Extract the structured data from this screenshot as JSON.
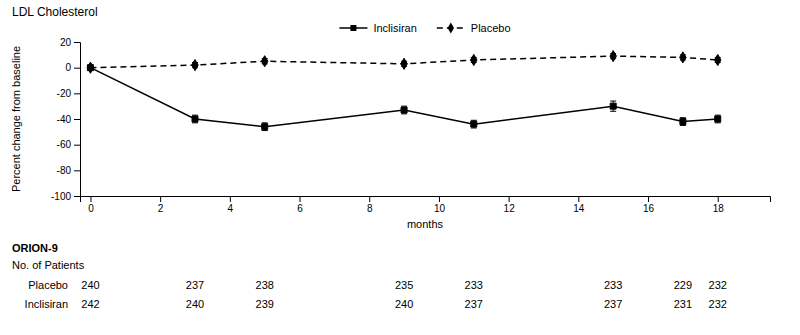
{
  "chart_data": {
    "type": "line",
    "title": "LDL Cholesterol",
    "x_label": "months",
    "y_label": "Percent change from baseline",
    "x": [
      0,
      3,
      5,
      9,
      11,
      15,
      17,
      18
    ],
    "xlim": [
      -0.3,
      19.5
    ],
    "xticks": [
      0,
      2,
      4,
      6,
      8,
      10,
      12,
      14,
      16,
      18
    ],
    "ylim": [
      -100,
      20
    ],
    "yticks": [
      -100,
      -80,
      -60,
      -40,
      -20,
      0,
      20
    ],
    "grid": false,
    "series": [
      {
        "name": "Inclisiran",
        "color": "#000000",
        "marker": "square",
        "line_style": "solid",
        "values": [
          0,
          -40,
          -46,
          -33,
          -44,
          -30,
          -42,
          -40
        ],
        "errors": [
          0.5,
          3,
          3,
          3,
          3,
          4,
          3,
          3
        ]
      },
      {
        "name": "Placebo",
        "color": "#000000",
        "marker": "diamond",
        "line_style": "dashed",
        "values": [
          0,
          2,
          5,
          3,
          6,
          9,
          8,
          6
        ],
        "errors": [
          0.5,
          2,
          2,
          2,
          2,
          2,
          2,
          2
        ]
      }
    ],
    "table": {
      "title": "ORION-9",
      "label": "No. of Patients",
      "x": [
        0,
        3,
        5,
        9,
        11,
        15,
        17,
        18
      ],
      "rows": [
        {
          "name": "Placebo",
          "values": [
            240,
            237,
            238,
            235,
            233,
            233,
            229,
            232
          ]
        },
        {
          "name": "Inclisiran",
          "values": [
            242,
            240,
            239,
            240,
            237,
            237,
            231,
            232
          ]
        }
      ]
    }
  }
}
